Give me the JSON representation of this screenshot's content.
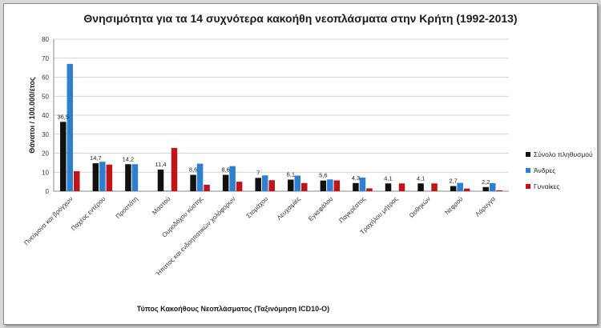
{
  "chart_data": {
    "type": "bar",
    "title": "Θνησιμότητα για τα 14 συχνότερα κακοήθη νεοπλάσματα στην Κρήτη (1992-2013)",
    "xlabel": "Τύπος Κακοήθους Νεοπλάσματος (Ταξινόμηση ICD10-O)",
    "ylabel": "Θάνατοι / 100.000/έτος",
    "ylim": [
      0,
      80
    ],
    "yticks": [
      "0",
      "10",
      "20",
      "30",
      "40",
      "50",
      "60",
      "70",
      "80"
    ],
    "grid": true,
    "legend_position": "right",
    "categories": [
      "Πνεύμονα και βρόγχων",
      "Παχέος εντέρου",
      "Προστάτη",
      "Μαστού",
      "Ουροδόχου κύστης",
      "Ήπατος και ενδοηπατικών χολόφορων",
      "Στομάχου",
      "Λευχαιμίες",
      "Εγκεφάλου",
      "Παγκρέατος",
      "Τραχήλου μήτρας",
      "Ωοθηκών",
      "Νεφρού",
      "Λάρυγγα"
    ],
    "series": [
      {
        "name": "Σύνολο πληθυσμού",
        "color": "#111111",
        "values": [
          36.5,
          14.7,
          14.2,
          11.4,
          8.6,
          8.6,
          7,
          6.1,
          5.6,
          4.3,
          4.1,
          4.1,
          2.7,
          2.2
        ]
      },
      {
        "name": "Άνδρες",
        "color": "#2e7fd0",
        "values": [
          67,
          15.5,
          14.2,
          0.3,
          14.5,
          13.2,
          8.3,
          8.2,
          6.2,
          7.2,
          0,
          0,
          4.4,
          4.2
        ]
      },
      {
        "name": "Γυναίκες",
        "color": "#c0141b",
        "values": [
          10.5,
          14,
          0,
          22.8,
          3.4,
          5,
          5.8,
          4.3,
          5.7,
          1.5,
          4.1,
          4.1,
          1.4,
          0.5
        ]
      }
    ],
    "data_labels": [
      "36,5",
      "14,7",
      "14,2",
      "11,4",
      "8,6",
      "8,6",
      "7",
      "6,1",
      "5,6",
      "4,3",
      "4,1",
      "4,1",
      "2,7",
      "2,2"
    ]
  }
}
